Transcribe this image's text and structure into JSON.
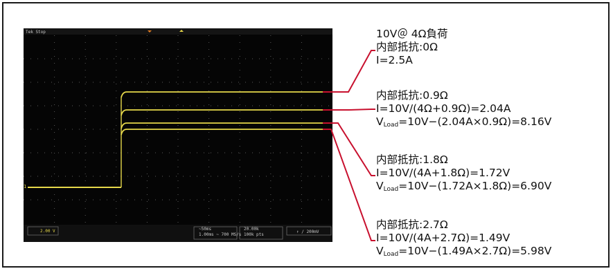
{
  "scope": {
    "header_left": "Tek Stop",
    "ch1_scale": "2.00 V",
    "timebase_line1": "~50ms",
    "timebase_line2": "1.00ms  ~  700 MS/s",
    "acq_line1": "20.00k",
    "acq_line2": "100k pts",
    "trigger_readout": "↑ /  200mV",
    "ch1_marker": "1",
    "trace_color": "#e6d84a",
    "background_color": "#050505"
  },
  "annotations": [
    {
      "lines": [
        {
          "text": "10V＠ 4Ω負荷"
        },
        {
          "text": "内部抵抗:0Ω"
        },
        {
          "text": "I=2.5A"
        }
      ]
    },
    {
      "lines": [
        {
          "text": "内部抵抗:0.9Ω"
        },
        {
          "text": "I=10V/(4Ω+0.9Ω)=2.04A"
        },
        {
          "pre": "V",
          "sub": "Load",
          "text": "=10V−(2.04A×0.9Ω)=8.16V"
        }
      ]
    },
    {
      "lines": [
        {
          "text": "内部抵抗:1.8Ω"
        },
        {
          "text": "I=10V/(4A+1.8Ω)=1.72V"
        },
        {
          "pre": "V",
          "sub": "Load",
          "text": "=10V−(1.72A×1.8Ω)=6.90V"
        }
      ]
    },
    {
      "lines": [
        {
          "text": "内部抵抗:2.7Ω"
        },
        {
          "text": "I=10V/(4A+2.7Ω)=1.49V"
        },
        {
          "pre": "V",
          "sub": "Load",
          "text": "=10V−(1.49A×2.7Ω)=5.98V"
        }
      ]
    }
  ],
  "leader_color": "#c8102e"
}
